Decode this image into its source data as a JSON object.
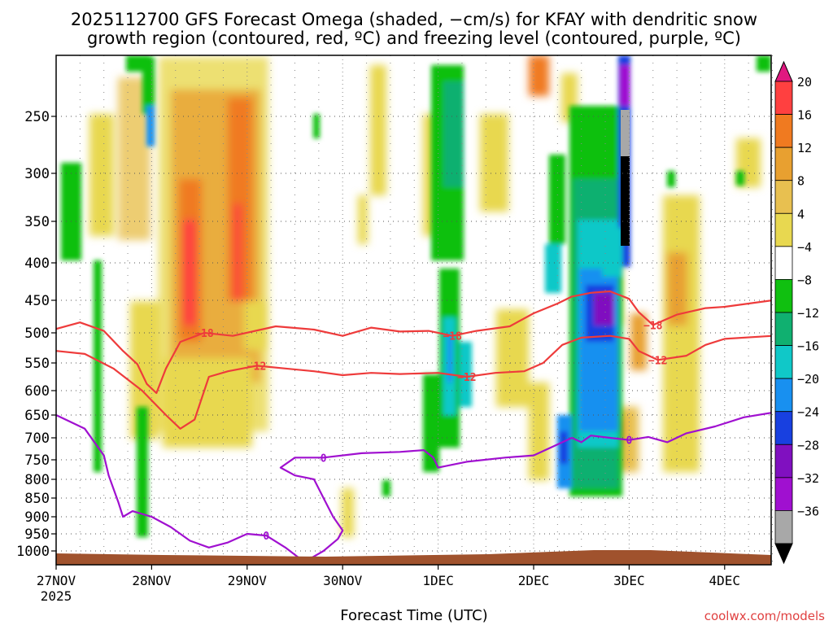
{
  "chart_data": {
    "type": "heatmap",
    "title_line1": "2025112700 GFS Forecast Omega (shaded, −cm/s) for KFAY with dendritic snow",
    "title_line2": "growth region (contoured, red, ºC) and freezing level (contoured, purple, ºC)",
    "xlabel": "Forecast Time (UTC)",
    "ylabel": "",
    "credit": "coolwx.com/models",
    "x_ticks": [
      {
        "t": 0,
        "label": "27NOV",
        "sub": "2025"
      },
      {
        "t": 1,
        "label": "28NOV",
        "sub": ""
      },
      {
        "t": 2,
        "label": "29NOV",
        "sub": ""
      },
      {
        "t": 3,
        "label": "30NOV",
        "sub": ""
      },
      {
        "t": 4,
        "label": "1DEC",
        "sub": ""
      },
      {
        "t": 5,
        "label": "2DEC",
        "sub": ""
      },
      {
        "t": 6,
        "label": "3DEC",
        "sub": ""
      },
      {
        "t": 7,
        "label": "4DEC",
        "sub": ""
      }
    ],
    "xlim": [
      0,
      7.5
    ],
    "y_ticks": [
      250,
      300,
      350,
      400,
      450,
      500,
      550,
      600,
      650,
      700,
      750,
      800,
      850,
      900,
      950,
      1000
    ],
    "ylim": [
      200,
      1025
    ],
    "colorbar": {
      "labels": [
        "20",
        "16",
        "12",
        "8",
        "4",
        "−4",
        "−8",
        "−12",
        "−16",
        "−20",
        "−24",
        "−28",
        "−32",
        "−36"
      ],
      "colors": [
        "#ff4040",
        "#f07a20",
        "#e8a030",
        "#e8c050",
        "#e8d850",
        "#ffffff",
        "#10c010",
        "#10b070",
        "#10c8c8",
        "#1890f0",
        "#1840e0",
        "#8010c0",
        "#a010d0",
        "#a8a8a8"
      ],
      "top_color": "#e01880",
      "bottom_color": "#000000"
    },
    "series": [
      {
        "name": "-18",
        "color": "#ee3b3b",
        "points": [
          [
            0,
            494
          ],
          [
            0.25,
            484
          ],
          [
            0.5,
            497
          ],
          [
            0.7,
            530
          ],
          [
            0.85,
            552
          ],
          [
            0.95,
            588
          ],
          [
            1.05,
            605
          ],
          [
            1.15,
            560
          ],
          [
            1.3,
            515
          ],
          [
            1.55,
            500
          ],
          [
            1.85,
            505
          ],
          [
            2.3,
            490
          ],
          [
            2.7,
            495
          ],
          [
            3.0,
            505
          ],
          [
            3.3,
            492
          ],
          [
            3.6,
            498
          ],
          [
            3.9,
            497
          ],
          [
            4.15,
            505
          ],
          [
            4.4,
            497
          ],
          [
            4.75,
            490
          ],
          [
            5.0,
            470
          ],
          [
            5.25,
            455
          ],
          [
            5.4,
            445
          ],
          [
            5.6,
            440
          ],
          [
            5.8,
            438
          ],
          [
            6.0,
            448
          ],
          [
            6.1,
            468
          ],
          [
            6.25,
            488
          ],
          [
            6.5,
            472
          ],
          [
            6.8,
            462
          ],
          [
            7.0,
            460
          ],
          [
            7.5,
            450
          ]
        ]
      },
      {
        "name": "-12",
        "color": "#ee3b3b",
        "points": [
          [
            0,
            530
          ],
          [
            0.3,
            535
          ],
          [
            0.6,
            560
          ],
          [
            0.9,
            600
          ],
          [
            1.15,
            650
          ],
          [
            1.3,
            680
          ],
          [
            1.45,
            660
          ],
          [
            1.6,
            575
          ],
          [
            1.8,
            565
          ],
          [
            2.1,
            555
          ],
          [
            2.4,
            560
          ],
          [
            2.7,
            565
          ],
          [
            3.0,
            572
          ],
          [
            3.3,
            568
          ],
          [
            3.6,
            570
          ],
          [
            4.0,
            568
          ],
          [
            4.3,
            575
          ],
          [
            4.6,
            568
          ],
          [
            4.9,
            565
          ],
          [
            5.1,
            550
          ],
          [
            5.3,
            520
          ],
          [
            5.5,
            508
          ],
          [
            5.8,
            505
          ],
          [
            6.0,
            510
          ],
          [
            6.1,
            530
          ],
          [
            6.3,
            545
          ],
          [
            6.6,
            538
          ],
          [
            6.8,
            520
          ],
          [
            7.0,
            510
          ],
          [
            7.5,
            505
          ]
        ]
      },
      {
        "name": "0",
        "color": "#a010d0",
        "points": [
          [
            0,
            650
          ],
          [
            0.3,
            680
          ],
          [
            0.5,
            740
          ],
          [
            0.55,
            790
          ],
          [
            0.65,
            860
          ],
          [
            0.7,
            900
          ],
          [
            0.8,
            885
          ],
          [
            1.0,
            900
          ],
          [
            1.2,
            930
          ],
          [
            1.4,
            970
          ],
          [
            1.6,
            990
          ],
          [
            1.8,
            975
          ],
          [
            2.0,
            950
          ],
          [
            2.2,
            955
          ],
          [
            2.4,
            990
          ],
          [
            2.6,
            1020
          ],
          [
            2.8,
            1000
          ],
          [
            2.95,
            965
          ],
          [
            3.0,
            940
          ],
          [
            2.9,
            900
          ],
          [
            2.8,
            850
          ],
          [
            2.7,
            800
          ],
          [
            2.5,
            790
          ],
          [
            2.35,
            770
          ],
          [
            2.5,
            745
          ],
          [
            2.8,
            745
          ],
          [
            3.2,
            735
          ],
          [
            3.6,
            732
          ],
          [
            3.85,
            728
          ],
          [
            3.95,
            745
          ],
          [
            4.0,
            770
          ],
          [
            4.3,
            755
          ],
          [
            4.7,
            745
          ],
          [
            5.0,
            740
          ],
          [
            5.25,
            715
          ],
          [
            5.4,
            700
          ],
          [
            5.5,
            710
          ],
          [
            5.6,
            695
          ],
          [
            5.8,
            700
          ],
          [
            6.0,
            705
          ],
          [
            6.2,
            698
          ],
          [
            6.4,
            710
          ],
          [
            6.6,
            690
          ],
          [
            6.9,
            675
          ],
          [
            7.2,
            655
          ],
          [
            7.5,
            645
          ]
        ]
      }
    ]
  }
}
